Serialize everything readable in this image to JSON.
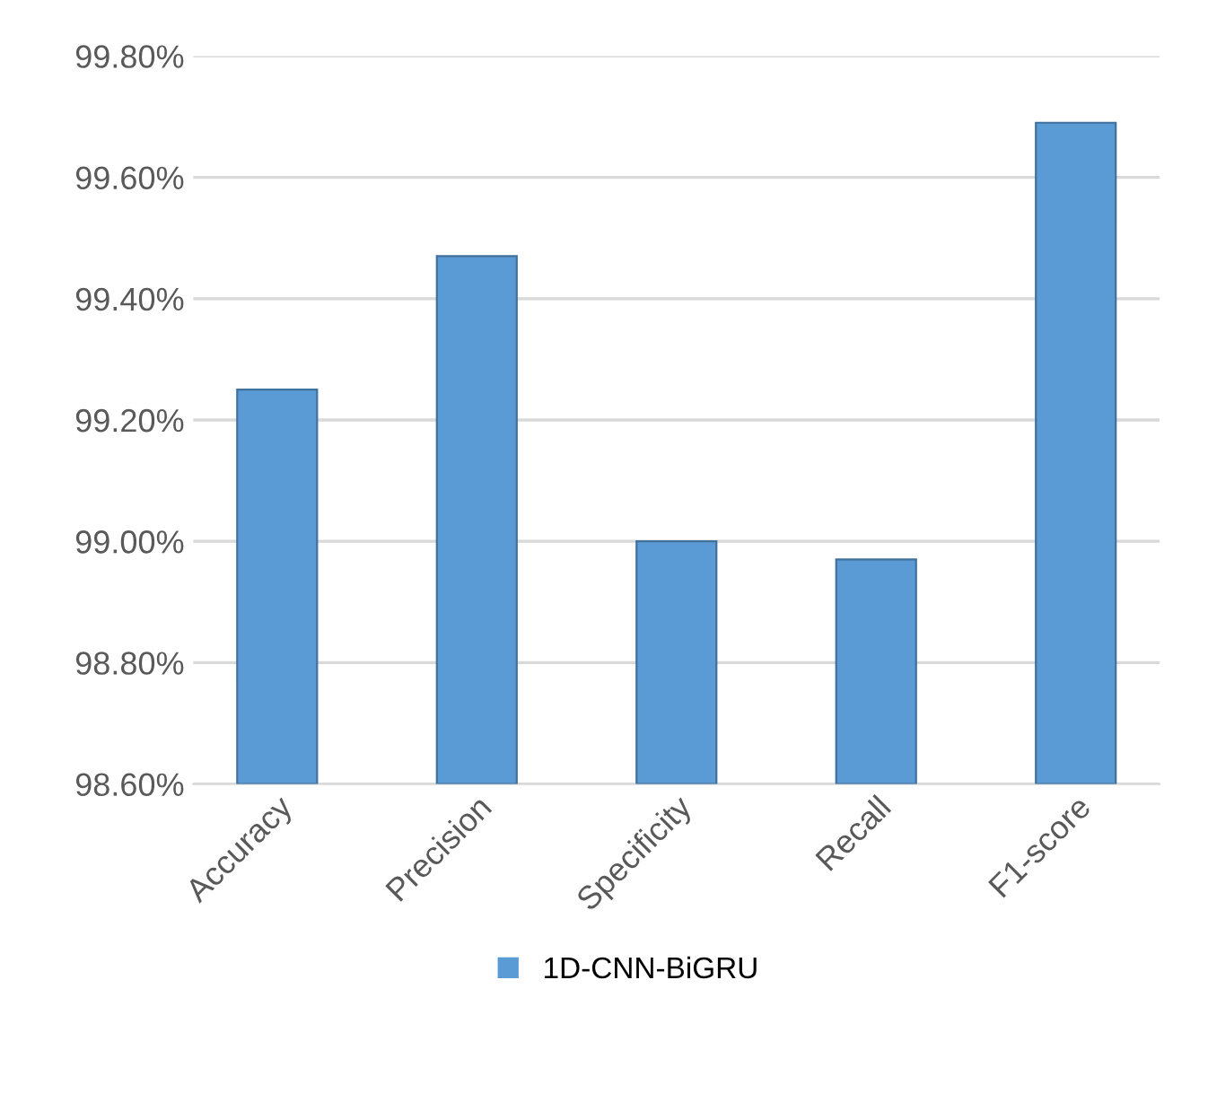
{
  "chart_data": {
    "type": "bar",
    "categories": [
      "Accuracy",
      "Precision",
      "Specificity",
      "Recall",
      "F1-score"
    ],
    "series": [
      {
        "name": "1D-CNN-BiGRU",
        "color": "#5b9bd5",
        "values": [
          99.25,
          99.47,
          99.0,
          98.97,
          99.69
        ]
      }
    ],
    "ylim": [
      98.6,
      99.8
    ],
    "yticks": [
      {
        "value": 98.6,
        "label": "98.60%"
      },
      {
        "value": 98.8,
        "label": "98.80%"
      },
      {
        "value": 99.0,
        "label": "99.00%"
      },
      {
        "value": 99.2,
        "label": "99.20%"
      },
      {
        "value": 99.4,
        "label": "99.40%"
      },
      {
        "value": 99.6,
        "label": "99.60%"
      },
      {
        "value": 99.8,
        "label": "99.80%"
      }
    ],
    "grid": "y",
    "legend": "bottom"
  }
}
